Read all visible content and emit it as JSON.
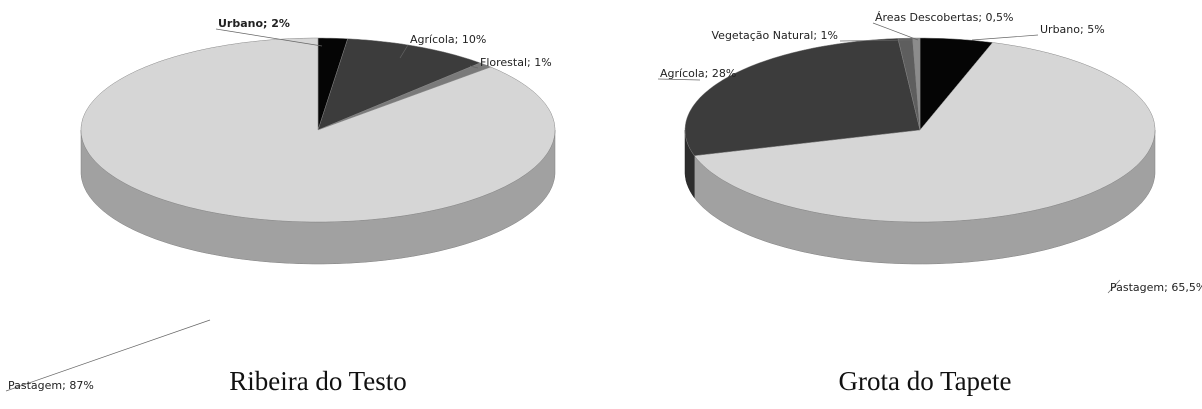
{
  "chart_data": [
    {
      "type": "pie",
      "title": "Ribeira do Testo",
      "values": [
        2,
        10,
        1,
        87
      ],
      "value_labels": [
        "Urbano; 2%",
        "Agrícola; 10%",
        "Florestal; 1%",
        "Pastagem; 87%"
      ],
      "colors": [
        "#050505",
        "#3c3c3c",
        "#7a7a7a",
        "#d6d6d6"
      ]
    },
    {
      "type": "pie",
      "title": "Grota do Tapete",
      "values": [
        5,
        65.5,
        28,
        1,
        0.5
      ],
      "value_labels": [
        "Urbano; 5%",
        "Pastagem; 65,5%",
        "Agrícola; 28%",
        "Vegetação Natural; 1%",
        "Áreas Descobertas; 0,5%"
      ],
      "colors": [
        "#050505",
        "#d6d6d6",
        "#3c3c3c",
        "#5e5e5e",
        "#8c8c8c"
      ]
    }
  ]
}
